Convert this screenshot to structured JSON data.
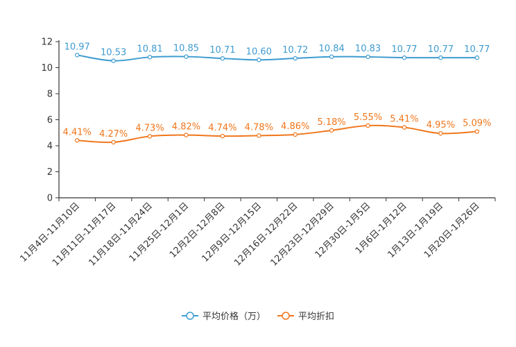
{
  "chart_data": {
    "type": "line",
    "title": "",
    "xlabel": "",
    "ylabel": "",
    "ylim": [
      0,
      12
    ],
    "yticks": [
      0,
      2,
      4,
      6,
      8,
      10,
      12
    ],
    "grid": false,
    "legend_position": "bottom-center",
    "categories": [
      "11月4日-11月10日",
      "11月11日-11月17日",
      "11月18日-11月24日",
      "11月25日-12月1日",
      "12月2日-12月8日",
      "12月9日-12月15日",
      "12月16日-12月22日",
      "12月23日-12月29日",
      "12月30日-1月5日",
      "1月6日-1月12日",
      "1月13日-1月19日",
      "1月20日-1月26日"
    ],
    "series": [
      {
        "name": "平均价格（万）",
        "color": "#3d9bd0",
        "values": [
          10.97,
          10.53,
          10.81,
          10.85,
          10.71,
          10.6,
          10.72,
          10.84,
          10.83,
          10.77,
          10.77,
          10.77
        ],
        "labels": [
          "10.97",
          "10.53",
          "10.81",
          "10.85",
          "10.71",
          "10.60",
          "10.72",
          "10.84",
          "10.83",
          "10.77",
          "10.77",
          "10.77"
        ]
      },
      {
        "name": "平均折扣",
        "color": "#f0761b",
        "values": [
          4.41,
          4.27,
          4.73,
          4.82,
          4.74,
          4.78,
          4.86,
          5.18,
          5.55,
          5.41,
          4.95,
          5.09
        ],
        "labels": [
          "4.41%",
          "4.27%",
          "4.73%",
          "4.82%",
          "4.74%",
          "4.78%",
          "4.86%",
          "5.18%",
          "5.55%",
          "5.41%",
          "4.95%",
          "5.09%"
        ]
      }
    ]
  }
}
